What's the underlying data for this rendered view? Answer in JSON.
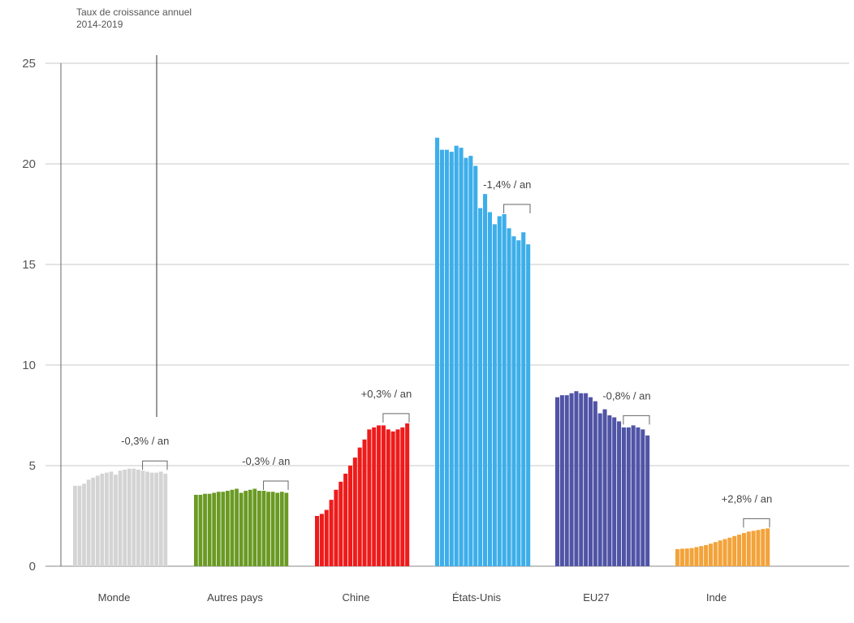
{
  "chart_data": {
    "type": "bar",
    "title_line1": "Taux de croissance annuel",
    "title_line2": "2014-2019",
    "ylim": [
      0,
      25
    ],
    "yticks": [
      "0",
      "5",
      "10",
      "15",
      "20",
      "25"
    ],
    "ytick_values": [
      0,
      5,
      10,
      15,
      20,
      25
    ],
    "groups": [
      {
        "name": "Monde",
        "color": "#d4d4d4",
        "annotation": "-0,3% / an",
        "values": [
          4.0,
          4.0,
          4.1,
          4.3,
          4.4,
          4.5,
          4.6,
          4.65,
          4.7,
          4.55,
          4.75,
          4.8,
          4.85,
          4.85,
          4.8,
          4.75,
          4.7,
          4.65,
          4.65,
          4.7,
          4.6
        ]
      },
      {
        "name": "Autres pays",
        "color": "#6a9a24",
        "annotation": "-0,3% / an",
        "values": [
          3.55,
          3.55,
          3.6,
          3.6,
          3.65,
          3.7,
          3.7,
          3.75,
          3.8,
          3.85,
          3.65,
          3.75,
          3.8,
          3.85,
          3.75,
          3.75,
          3.7,
          3.7,
          3.65,
          3.7,
          3.65
        ]
      },
      {
        "name": "Chine",
        "color": "#ee1b1b",
        "annotation": "+0,3% / an",
        "values": [
          2.5,
          2.6,
          2.8,
          3.3,
          3.8,
          4.2,
          4.6,
          5.0,
          5.4,
          5.9,
          6.3,
          6.8,
          6.9,
          7.0,
          7.0,
          6.8,
          6.7,
          6.8,
          6.9,
          7.1
        ]
      },
      {
        "name": "États-Unis",
        "color": "#3daeea",
        "annotation": "-1,4% / an",
        "values": [
          21.3,
          20.7,
          20.7,
          20.6,
          20.9,
          20.8,
          20.3,
          20.4,
          19.9,
          17.8,
          18.5,
          17.6,
          17.0,
          17.4,
          17.5,
          16.8,
          16.4,
          16.2,
          16.6,
          16.0
        ]
      },
      {
        "name": "EU27",
        "color": "#5054a6",
        "annotation": "-0,8% / an",
        "values": [
          8.4,
          8.5,
          8.5,
          8.6,
          8.7,
          8.6,
          8.6,
          8.4,
          8.2,
          7.6,
          7.8,
          7.5,
          7.4,
          7.2,
          6.9,
          6.9,
          7.0,
          6.9,
          6.8,
          6.5
        ]
      },
      {
        "name": "Inde",
        "color": "#f3a33a",
        "annotation": "+2,8% / an",
        "values": [
          0.85,
          0.87,
          0.88,
          0.9,
          0.95,
          1.0,
          1.05,
          1.12,
          1.2,
          1.28,
          1.35,
          1.42,
          1.5,
          1.57,
          1.65,
          1.72,
          1.76,
          1.8,
          1.85,
          1.88
        ]
      }
    ]
  }
}
